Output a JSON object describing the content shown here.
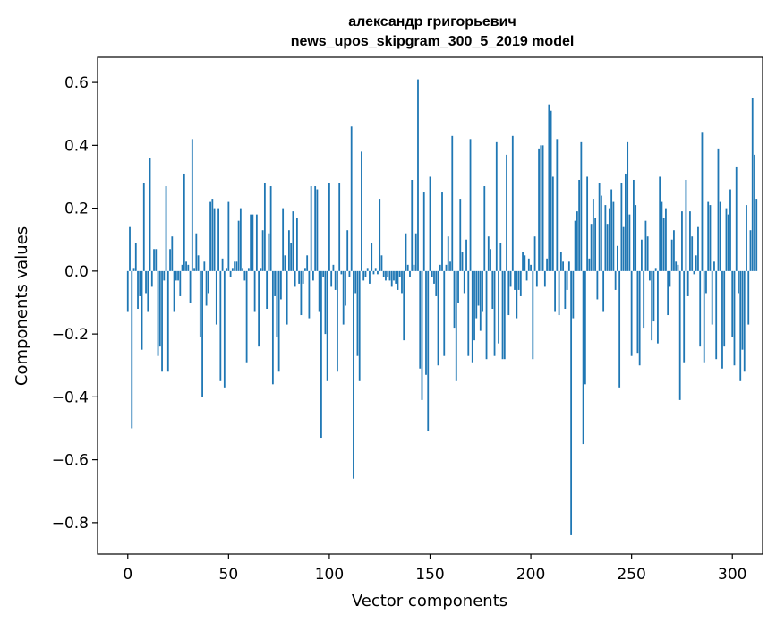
{
  "chart_data": {
    "type": "bar",
    "title": "александр григорьевич",
    "subtitle": "news_upos_skipgram_300_5_2019 model",
    "xlabel": "Vector components",
    "ylabel": "Components values",
    "xlim": [
      -15,
      315
    ],
    "ylim": [
      -0.9,
      0.68
    ],
    "xticks": [
      0,
      50,
      100,
      150,
      200,
      250,
      300
    ],
    "xtick_labels": [
      "0",
      "50",
      "100",
      "150",
      "200",
      "250",
      "300"
    ],
    "yticks": [
      -0.8,
      -0.6,
      -0.4,
      -0.2,
      0.0,
      0.2,
      0.4,
      0.6
    ],
    "ytick_labels": [
      "−0.8",
      "−0.6",
      "−0.4",
      "−0.2",
      "0.0",
      "0.2",
      "0.4",
      "0.6"
    ],
    "bar_color": "#1f77b4",
    "values": [
      -0.13,
      0.14,
      -0.5,
      0.01,
      0.09,
      -0.12,
      -0.08,
      -0.25,
      0.28,
      -0.07,
      -0.13,
      0.36,
      -0.05,
      0.07,
      0.07,
      -0.27,
      -0.24,
      -0.32,
      -0.03,
      0.27,
      -0.32,
      0.07,
      0.11,
      -0.13,
      -0.03,
      -0.03,
      -0.08,
      0.02,
      0.31,
      0.03,
      0.02,
      -0.1,
      0.42,
      0.01,
      0.12,
      0.05,
      -0.21,
      -0.4,
      0.03,
      -0.11,
      -0.07,
      0.22,
      0.23,
      0.2,
      -0.17,
      0.2,
      -0.35,
      0.04,
      -0.37,
      0.01,
      0.22,
      -0.02,
      0.01,
      0.03,
      0.03,
      0.16,
      0.2,
      0.01,
      -0.03,
      -0.29,
      0.01,
      0.18,
      0.18,
      -0.13,
      0.18,
      -0.24,
      0.01,
      0.13,
      0.28,
      -0.12,
      0.12,
      0.27,
      -0.36,
      -0.08,
      -0.21,
      -0.32,
      -0.09,
      0.2,
      0.05,
      -0.17,
      0.13,
      0.09,
      0.19,
      -0.05,
      0.17,
      -0.04,
      -0.14,
      -0.04,
      0.01,
      0.05,
      -0.15,
      0.27,
      -0.03,
      0.27,
      0.26,
      -0.13,
      -0.53,
      -0.02,
      -0.2,
      -0.35,
      0.28,
      -0.05,
      0.02,
      -0.06,
      -0.32,
      0.28,
      -0.01,
      -0.17,
      -0.11,
      0.13,
      -0.02,
      0.46,
      -0.66,
      -0.07,
      -0.27,
      -0.35,
      0.38,
      -0.03,
      -0.02,
      0.01,
      -0.04,
      0.09,
      -0.01,
      0.01,
      -0.01,
      0.23,
      0.05,
      -0.02,
      -0.03,
      -0.02,
      -0.03,
      -0.05,
      -0.03,
      -0.04,
      -0.06,
      -0.02,
      -0.07,
      -0.22,
      0.12,
      0.02,
      -0.02,
      0.29,
      0.02,
      0.12,
      0.61,
      -0.31,
      -0.41,
      0.25,
      -0.33,
      -0.51,
      0.3,
      -0.02,
      -0.04,
      -0.08,
      -0.3,
      0.02,
      0.25,
      -0.27,
      0.02,
      0.11,
      0.03,
      0.43,
      -0.18,
      -0.35,
      -0.1,
      0.23,
      0.06,
      -0.07,
      0.1,
      -0.27,
      0.42,
      -0.29,
      -0.22,
      -0.15,
      -0.11,
      -0.19,
      -0.13,
      0.27,
      -0.28,
      0.11,
      0.07,
      -0.12,
      -0.27,
      0.41,
      -0.23,
      0.09,
      -0.28,
      -0.28,
      0.37,
      -0.14,
      -0.05,
      0.43,
      -0.06,
      -0.15,
      -0.06,
      -0.08,
      0.06,
      0.05,
      -0.03,
      0.04,
      0.02,
      -0.28,
      0.11,
      -0.05,
      0.39,
      0.4,
      0.4,
      -0.05,
      0.04,
      0.53,
      0.51,
      0.3,
      -0.13,
      0.42,
      -0.14,
      0.06,
      0.03,
      -0.12,
      -0.06,
      0.03,
      -0.84,
      -0.15,
      0.16,
      0.19,
      0.29,
      0.41,
      -0.55,
      -0.36,
      0.3,
      0.04,
      0.15,
      0.23,
      0.17,
      -0.09,
      0.28,
      0.24,
      -0.13,
      0.21,
      0.15,
      0.2,
      0.26,
      0.22,
      -0.06,
      0.08,
      -0.37,
      0.28,
      0.14,
      0.31,
      0.41,
      0.18,
      -0.27,
      0.29,
      0.21,
      -0.26,
      -0.3,
      0.1,
      -0.18,
      0.16,
      0.11,
      -0.03,
      -0.22,
      -0.16,
      0.01,
      -0.23,
      0.3,
      0.22,
      0.17,
      0.2,
      -0.14,
      -0.05,
      0.1,
      0.13,
      0.03,
      0.02,
      -0.41,
      0.19,
      -0.29,
      0.29,
      -0.08,
      0.19,
      0.11,
      -0.01,
      0.05,
      0.14,
      -0.24,
      0.44,
      -0.29,
      -0.07,
      0.22,
      0.21,
      -0.17,
      0.03,
      -0.28,
      0.39,
      0.22,
      -0.31,
      -0.24,
      0.2,
      0.18,
      0.26,
      -0.21,
      -0.3,
      0.33,
      -0.07,
      -0.35,
      -0.25,
      -0.32,
      0.21,
      -0.17,
      0.13,
      0.55,
      0.37,
      0.23
    ]
  }
}
